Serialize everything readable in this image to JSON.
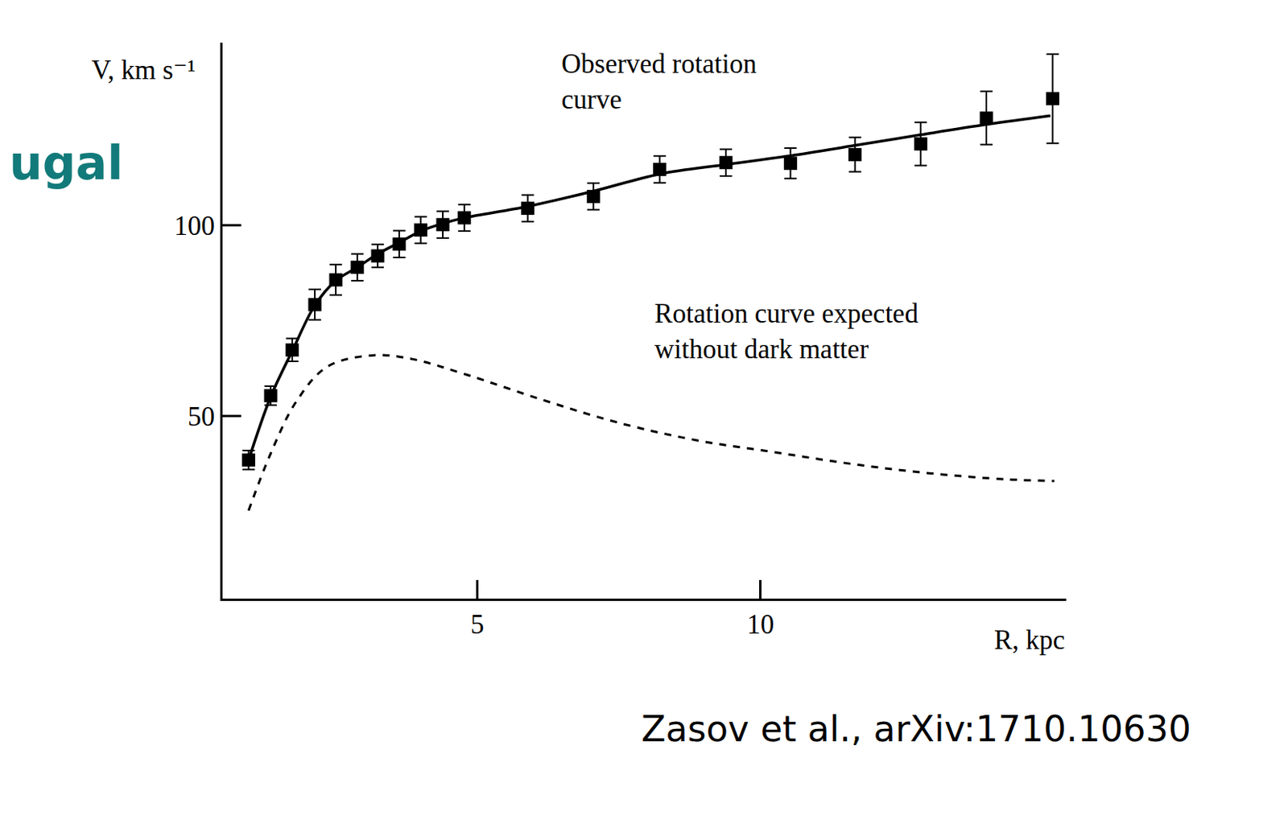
{
  "chart_data": {
    "type": "line",
    "header_fragment": "ugal",
    "source": "Zasov et al., arXiv:1710.10630",
    "x_label": "R, kpc",
    "y_label": "V, km s⁻¹",
    "annotations": [
      "Observed rotation\ncurve",
      "Rotation curve expected\nwithout dark matter"
    ],
    "xlim": [
      0.5,
      15.4
    ],
    "xticks": [
      5,
      10
    ],
    "ylim": [
      2,
      148
    ],
    "yticks": [
      50,
      100
    ],
    "grid": false,
    "series": [
      {
        "type": "scatter",
        "marker": "square",
        "color": "#000000",
        "x": [
          0.96,
          1.35,
          1.73,
          2.13,
          2.5,
          2.88,
          3.24,
          3.62,
          4.0,
          4.39,
          4.77,
          5.89,
          7.05,
          8.22,
          9.39,
          10.53,
          11.67,
          12.83,
          13.99,
          15.16
        ],
        "values": [
          38.4,
          55.3,
          67.3,
          79.2,
          85.7,
          89.0,
          92.0,
          95.1,
          98.8,
          100.2,
          102.0,
          104.5,
          107.6,
          114.7,
          116.5,
          116.3,
          118.6,
          121.4,
          128.2,
          133.3
        ],
        "errors": [
          2.5,
          2.5,
          3,
          4,
          4,
          3.5,
          3,
          3.5,
          3.5,
          3.5,
          3.5,
          3.5,
          3.5,
          3.5,
          3.5,
          4,
          4.5,
          5.7,
          7,
          11.7
        ]
      },
      {
        "type": "line",
        "line_style": "solid",
        "color": "#000000",
        "x": [
          0.96,
          1.35,
          1.73,
          2.13,
          2.5,
          2.88,
          3.24,
          3.62,
          4.0,
          4.39,
          4.77,
          5.89,
          7.05,
          8.22,
          9.39,
          10.53,
          11.67,
          12.83,
          13.99,
          15.12
        ],
        "values": [
          38.4,
          55,
          67,
          79,
          85.5,
          89,
          92.5,
          95.5,
          98.5,
          100.5,
          102,
          105,
          109,
          113.5,
          116,
          118.3,
          121,
          123.8,
          126.5,
          128.8
        ]
      },
      {
        "type": "line",
        "line_style": "dash",
        "color": "#000000",
        "x": [
          0.96,
          1.33,
          1.8,
          2.35,
          3.17,
          3.85,
          4.81,
          6.17,
          7.54,
          8.9,
          10.27,
          11.64,
          13.0,
          14.37,
          15.19
        ],
        "values": [
          25.1,
          39.4,
          53.7,
          62.9,
          65.9,
          64.9,
          60.8,
          54.1,
          48,
          43.5,
          40.4,
          37.3,
          34.9,
          33.3,
          32.9
        ]
      }
    ]
  }
}
